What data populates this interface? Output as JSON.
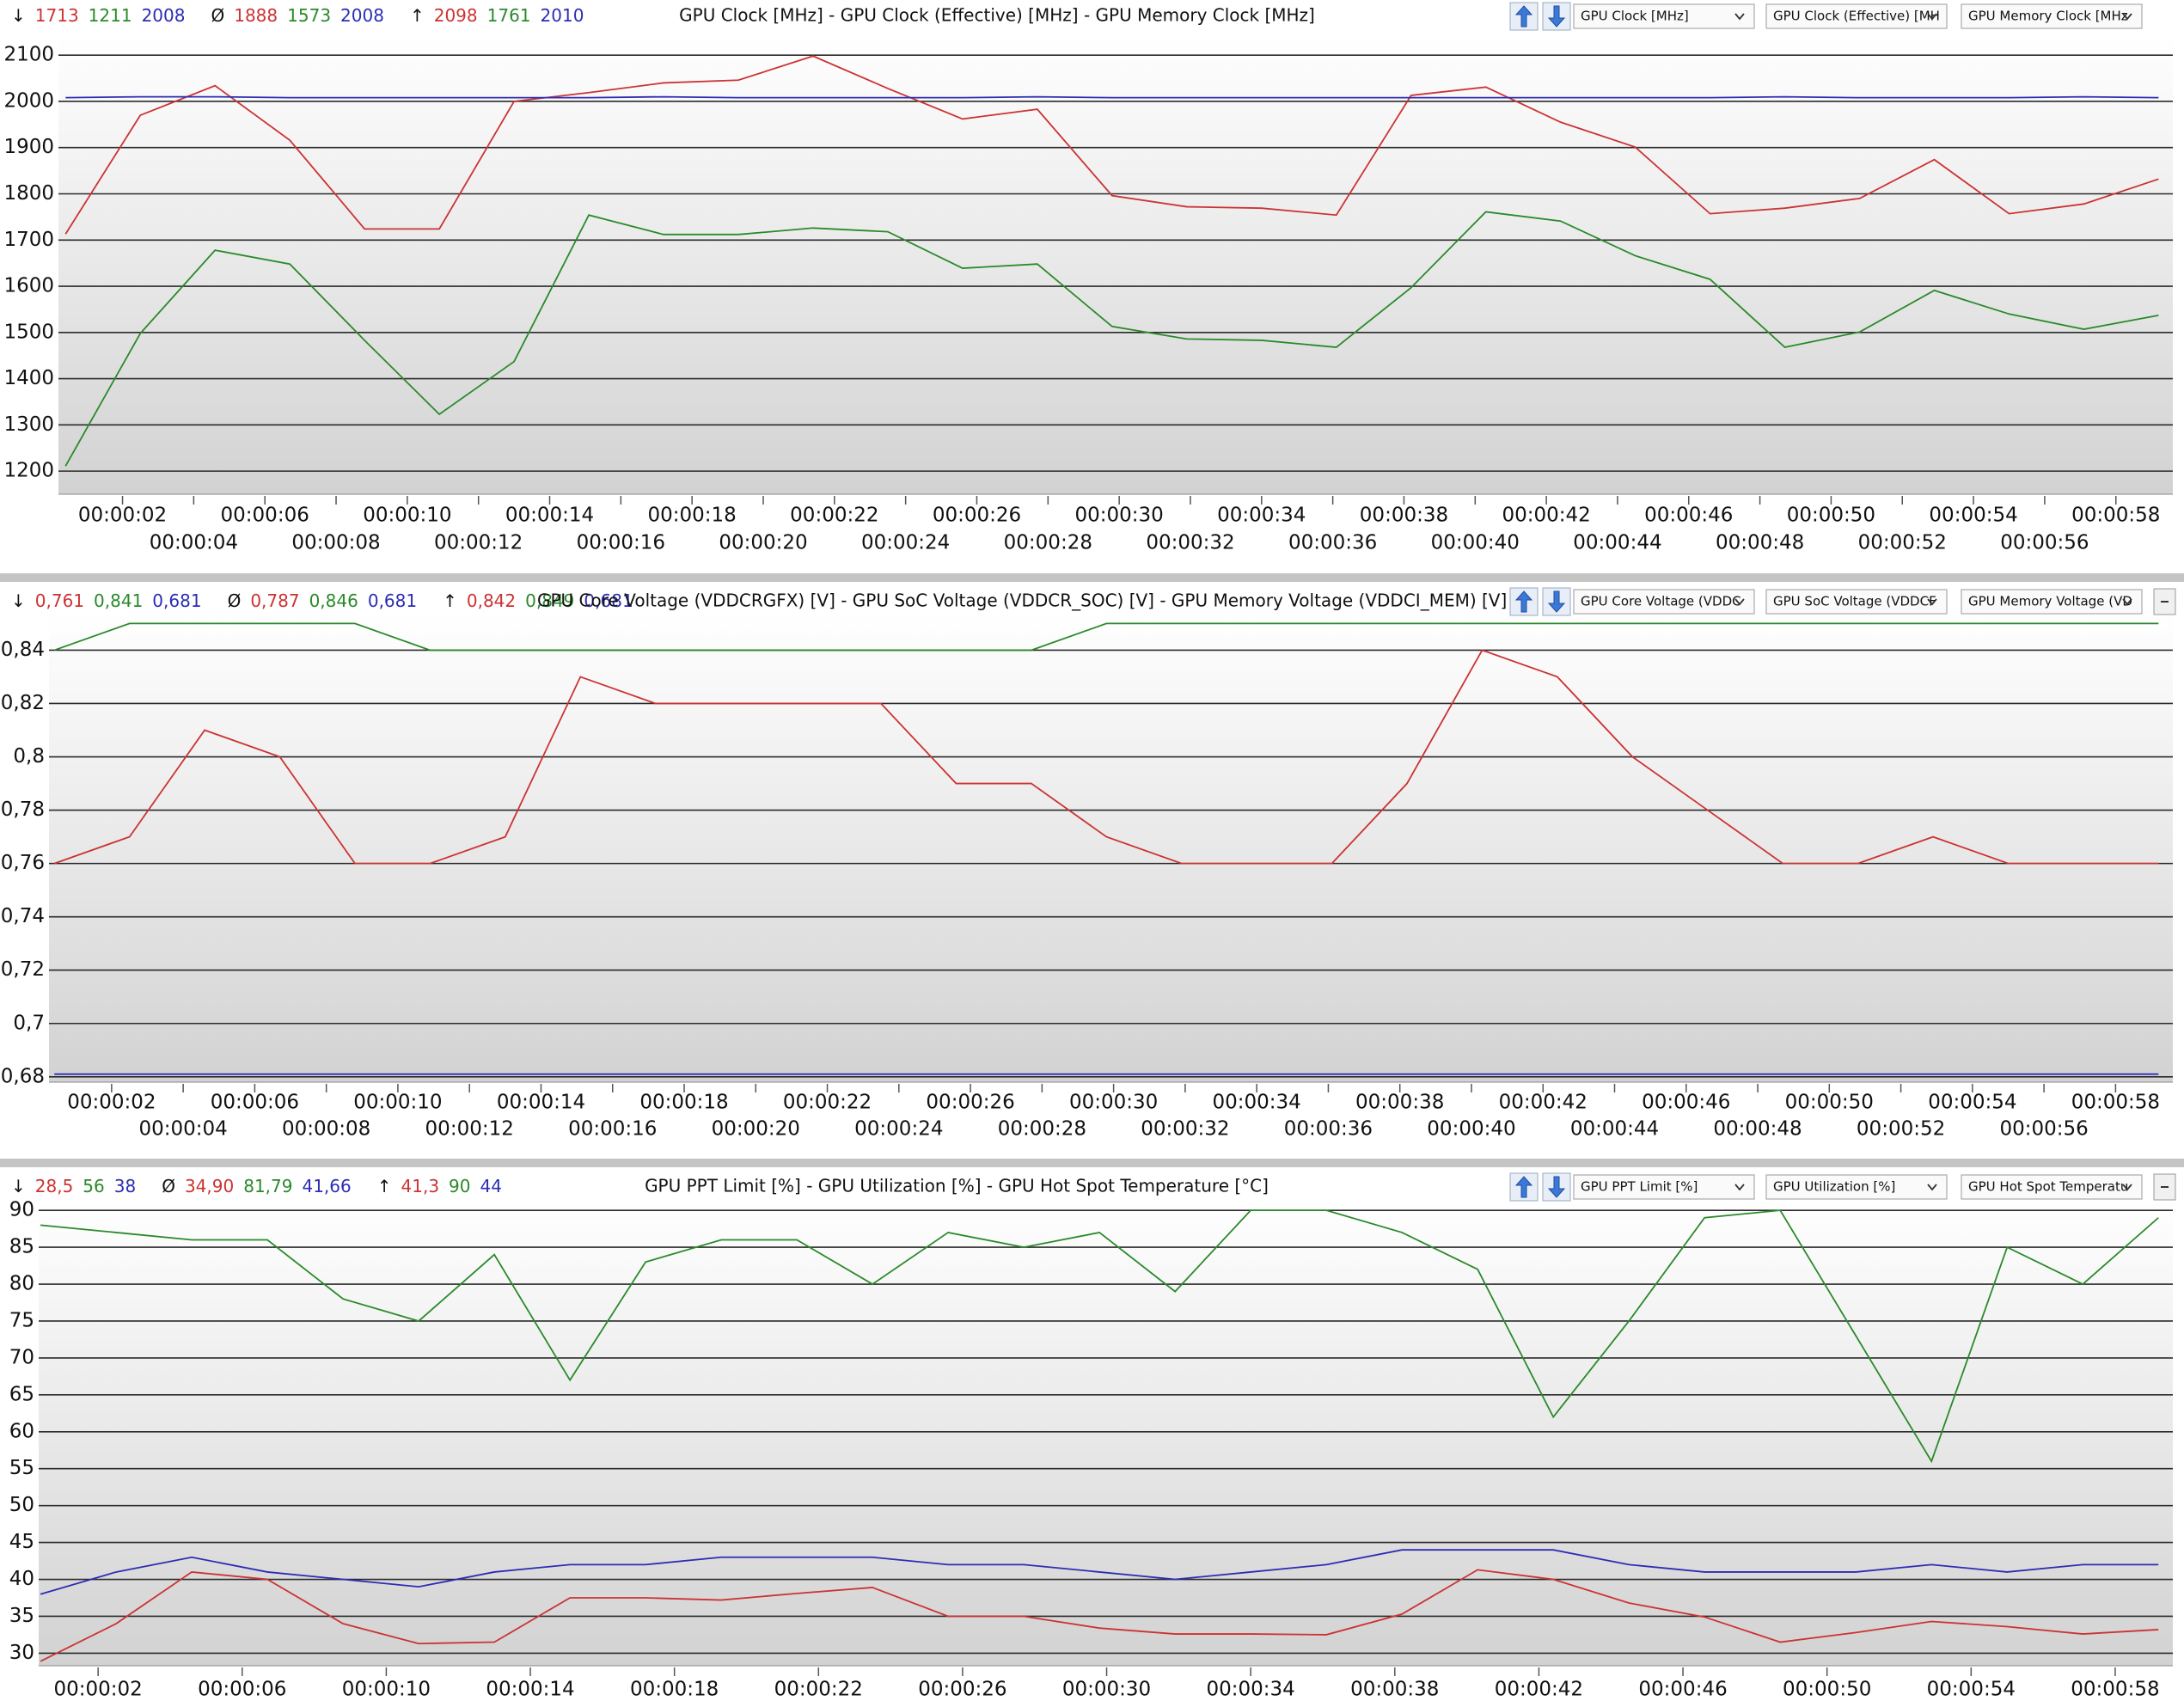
{
  "chart_data": [
    {
      "type": "line",
      "title": "GPU Clock [MHz]  -  GPU Clock (Effective) [MHz]  -  GPU Memory Clock [MHz]",
      "stats": [
        {
          "symbol": "↓",
          "values": [
            "1713",
            "1211",
            "2008"
          ]
        },
        {
          "symbol": "Ø",
          "values": [
            "1888",
            "1573",
            "2008"
          ]
        },
        {
          "symbol": "↑",
          "values": [
            "2098",
            "1761",
            "2010"
          ]
        }
      ],
      "x": [
        0.4,
        2.5,
        4.6,
        6.7,
        8.8,
        10.9,
        13,
        15.1,
        17.2,
        19.3,
        21.4,
        23.5,
        25.6,
        27.7,
        29.8,
        31.9,
        34,
        36.1,
        38.2,
        40.3,
        42.4,
        44.5,
        46.6,
        48.7,
        50.8,
        52.9,
        55,
        57.1,
        59.2
      ],
      "xlim": [
        0.2,
        59.6
      ],
      "xticks": [
        {
          "value": 2,
          "label": "00:00:02"
        },
        {
          "value": 4,
          "label": "00:00:04"
        },
        {
          "value": 6,
          "label": "00:00:06"
        },
        {
          "value": 8,
          "label": "00:00:08"
        },
        {
          "value": 10,
          "label": "00:00:10"
        },
        {
          "value": 12,
          "label": "00:00:12"
        },
        {
          "value": 14,
          "label": "00:00:14"
        },
        {
          "value": 16,
          "label": "00:00:16"
        },
        {
          "value": 18,
          "label": "00:00:18"
        },
        {
          "value": 20,
          "label": "00:00:20"
        },
        {
          "value": 22,
          "label": "00:00:22"
        },
        {
          "value": 24,
          "label": "00:00:24"
        },
        {
          "value": 26,
          "label": "00:00:26"
        },
        {
          "value": 28,
          "label": "00:00:28"
        },
        {
          "value": 30,
          "label": "00:00:30"
        },
        {
          "value": 32,
          "label": "00:00:32"
        },
        {
          "value": 34,
          "label": "00:00:34"
        },
        {
          "value": 36,
          "label": "00:00:36"
        },
        {
          "value": 38,
          "label": "00:00:38"
        },
        {
          "value": 40,
          "label": "00:00:40"
        },
        {
          "value": 42,
          "label": "00:00:42"
        },
        {
          "value": 44,
          "label": "00:00:44"
        },
        {
          "value": 46,
          "label": "00:00:46"
        },
        {
          "value": 48,
          "label": "00:00:48"
        },
        {
          "value": 50,
          "label": "00:00:50"
        },
        {
          "value": 52,
          "label": "00:00:52"
        },
        {
          "value": 54,
          "label": "00:00:54"
        },
        {
          "value": 56,
          "label": "00:00:56"
        },
        {
          "value": 58,
          "label": "00:00:58"
        }
      ],
      "ylim": [
        1150,
        2145
      ],
      "yticks": [
        1200,
        1300,
        1400,
        1500,
        1600,
        1700,
        1800,
        1900,
        2000,
        2100
      ],
      "grid": true,
      "series": [
        {
          "name": "GPU Clock [MHz]",
          "color": "#cc3333",
          "values": [
            1713,
            1970,
            2034,
            1916,
            1724,
            1724,
            2000,
            2019,
            2040,
            2046,
            2098,
            2028,
            1962,
            1983,
            1796,
            1772,
            1769,
            1754,
            2013,
            2031,
            1955,
            1901,
            1757,
            1769,
            1790,
            1874,
            1757,
            1778,
            1832
          ]
        },
        {
          "name": "GPU Clock (Effective) [MH",
          "color": "#2a8a2a",
          "values": [
            1211,
            1498,
            1678,
            1648,
            1483,
            1323,
            1437,
            1754,
            1712,
            1712,
            1726,
            1718,
            1639,
            1648,
            1513,
            1486,
            1483,
            1468,
            1597,
            1761,
            1741,
            1666,
            1615,
            1468,
            1501,
            1591,
            1540,
            1507,
            1537
          ]
        },
        {
          "name": "GPU Memory Clock [MHz",
          "color": "#2d2db4",
          "values": [
            2008,
            2010,
            2010,
            2008,
            2008,
            2008,
            2008,
            2008,
            2010,
            2008,
            2008,
            2008,
            2008,
            2010,
            2008,
            2008,
            2008,
            2008,
            2008,
            2008,
            2008,
            2008,
            2008,
            2010,
            2008,
            2008,
            2008,
            2010,
            2008
          ]
        }
      ]
    },
    {
      "type": "line",
      "title": "GPU Core Voltage (VDDCRGFX) [V]  -  GPU SoC Voltage (VDDCR_SOC) [V]  -  GPU Memory Voltage (VDDCI_MEM) [V]",
      "stats": [
        {
          "symbol": "↓",
          "values": [
            "0,761",
            "0,841",
            "0,681"
          ]
        },
        {
          "symbol": "Ø",
          "values": [
            "0,787",
            "0,846",
            "0,681"
          ]
        },
        {
          "symbol": "↑",
          "values": [
            "0,842",
            "0,849",
            "0,681"
          ]
        }
      ],
      "x": [
        0.4,
        2.5,
        4.6,
        6.7,
        8.8,
        10.9,
        13,
        15.1,
        17.2,
        19.3,
        21.4,
        23.5,
        25.6,
        27.7,
        29.8,
        31.9,
        34,
        36.1,
        38.2,
        40.3,
        42.4,
        44.5,
        46.6,
        48.7,
        50.8,
        52.9,
        55,
        57.1,
        59.2
      ],
      "xlim": [
        0.25,
        59.6
      ],
      "xticks": [
        {
          "value": 2,
          "label": "00:00:02"
        },
        {
          "value": 4,
          "label": "00:00:04"
        },
        {
          "value": 6,
          "label": "00:00:06"
        },
        {
          "value": 8,
          "label": "00:00:08"
        },
        {
          "value": 10,
          "label": "00:00:10"
        },
        {
          "value": 12,
          "label": "00:00:12"
        },
        {
          "value": 14,
          "label": "00:00:14"
        },
        {
          "value": 16,
          "label": "00:00:16"
        },
        {
          "value": 18,
          "label": "00:00:18"
        },
        {
          "value": 20,
          "label": "00:00:20"
        },
        {
          "value": 22,
          "label": "00:00:22"
        },
        {
          "value": 24,
          "label": "00:00:24"
        },
        {
          "value": 26,
          "label": "00:00:26"
        },
        {
          "value": 28,
          "label": "00:00:28"
        },
        {
          "value": 30,
          "label": "00:00:30"
        },
        {
          "value": 32,
          "label": "00:00:32"
        },
        {
          "value": 34,
          "label": "00:00:34"
        },
        {
          "value": 36,
          "label": "00:00:36"
        },
        {
          "value": 38,
          "label": "00:00:38"
        },
        {
          "value": 40,
          "label": "00:00:40"
        },
        {
          "value": 42,
          "label": "00:00:42"
        },
        {
          "value": 44,
          "label": "00:00:44"
        },
        {
          "value": 46,
          "label": "00:00:46"
        },
        {
          "value": 48,
          "label": "00:00:48"
        },
        {
          "value": 50,
          "label": "00:00:50"
        },
        {
          "value": 52,
          "label": "00:00:52"
        },
        {
          "value": 54,
          "label": "00:00:54"
        },
        {
          "value": 56,
          "label": "00:00:56"
        },
        {
          "value": 58,
          "label": "00:00:58"
        }
      ],
      "ylim": [
        0.678,
        0.854
      ],
      "yticks": [
        {
          "value": 0.68,
          "label": "0,68"
        },
        {
          "value": 0.7,
          "label": "0,7"
        },
        {
          "value": 0.72,
          "label": "0,72"
        },
        {
          "value": 0.74,
          "label": "0,74"
        },
        {
          "value": 0.76,
          "label": "0,76"
        },
        {
          "value": 0.78,
          "label": "0,78"
        },
        {
          "value": 0.8,
          "label": "0,8"
        },
        {
          "value": 0.82,
          "label": "0,82"
        },
        {
          "value": 0.84,
          "label": "0,84"
        }
      ],
      "grid": true,
      "series": [
        {
          "name": "GPU Core Voltage (VDDC",
          "color": "#cc3333",
          "values": [
            0.76,
            0.77,
            0.81,
            0.8,
            0.76,
            0.76,
            0.77,
            0.83,
            0.82,
            0.82,
            0.82,
            0.82,
            0.79,
            0.79,
            0.77,
            0.76,
            0.76,
            0.76,
            0.79,
            0.84,
            0.83,
            0.8,
            0.78,
            0.76,
            0.76,
            0.77,
            0.76,
            0.76,
            0.76
          ]
        },
        {
          "name": "GPU SoC Voltage (VDDCF",
          "color": "#2a8a2a",
          "values": [
            0.84,
            0.85,
            0.85,
            0.85,
            0.85,
            0.84,
            0.84,
            0.84,
            0.84,
            0.84,
            0.84,
            0.84,
            0.84,
            0.84,
            0.85,
            0.85,
            0.85,
            0.85,
            0.85,
            0.85,
            0.85,
            0.85,
            0.85,
            0.85,
            0.85,
            0.85,
            0.85,
            0.85,
            0.85
          ]
        },
        {
          "name": "GPU Memory Voltage (VD",
          "color": "#2d2db4",
          "values": [
            0.681,
            0.681,
            0.681,
            0.681,
            0.681,
            0.681,
            0.681,
            0.681,
            0.681,
            0.681,
            0.681,
            0.681,
            0.681,
            0.681,
            0.681,
            0.681,
            0.681,
            0.681,
            0.681,
            0.681,
            0.681,
            0.681,
            0.681,
            0.681,
            0.681,
            0.681,
            0.681,
            0.681,
            0.681
          ]
        }
      ]
    },
    {
      "type": "line",
      "title": "GPU PPT Limit [%]  -  GPU Utilization [%]  -  GPU Hot Spot Temperature [°C]",
      "stats": [
        {
          "symbol": "↓",
          "values": [
            "28,5",
            "56",
            "38"
          ]
        },
        {
          "symbol": "Ø",
          "values": [
            "34,90",
            "81,79",
            "41,66"
          ]
        },
        {
          "symbol": "↑",
          "values": [
            "41,3",
            "90",
            "44"
          ]
        }
      ],
      "x": [
        0.4,
        2.5,
        4.6,
        6.7,
        8.8,
        10.9,
        13,
        15.1,
        17.2,
        19.3,
        21.4,
        23.5,
        25.6,
        27.7,
        29.8,
        31.9,
        34,
        36.1,
        38.2,
        40.3,
        42.4,
        44.5,
        46.6,
        48.7,
        50.8,
        52.9,
        55,
        57.1,
        59.2
      ],
      "xlim": [
        0.35,
        59.6
      ],
      "xticks": [
        {
          "value": 2,
          "label": "00:00:02"
        },
        {
          "value": 6,
          "label": "00:00:06"
        },
        {
          "value": 10,
          "label": "00:00:10"
        },
        {
          "value": 14,
          "label": "00:00:14"
        },
        {
          "value": 18,
          "label": "00:00:18"
        },
        {
          "value": 22,
          "label": "00:00:22"
        },
        {
          "value": 26,
          "label": "00:00:26"
        },
        {
          "value": 30,
          "label": "00:00:30"
        },
        {
          "value": 34,
          "label": "00:00:34"
        },
        {
          "value": 38,
          "label": "00:00:38"
        },
        {
          "value": 42,
          "label": "00:00:42"
        },
        {
          "value": 46,
          "label": "00:00:46"
        },
        {
          "value": 50,
          "label": "00:00:50"
        },
        {
          "value": 54,
          "label": "00:00:54"
        },
        {
          "value": 58,
          "label": "00:00:58"
        }
      ],
      "ylim": [
        28.3,
        91.3
      ],
      "yticks": [
        30,
        35,
        40,
        45,
        50,
        55,
        60,
        65,
        70,
        75,
        80,
        85,
        90
      ],
      "grid": true,
      "series": [
        {
          "name": "GPU PPT Limit [%]",
          "color": "#cc3333",
          "values": [
            28.9,
            34,
            41,
            40,
            34,
            31.3,
            31.5,
            37.5,
            37.5,
            37.2,
            38.1,
            38.9,
            35,
            35,
            33.4,
            32.6,
            32.6,
            32.5,
            35.3,
            41.3,
            40,
            36.8,
            34.9,
            31.5,
            32.8,
            34.3,
            33.6,
            32.6,
            33.2
          ]
        },
        {
          "name": "GPU Utilization [%]",
          "color": "#2a8a2a",
          "values": [
            88,
            87,
            86,
            86,
            78,
            75,
            84,
            67,
            83,
            86,
            86,
            80,
            87,
            85,
            87,
            79,
            90,
            90,
            87,
            82,
            62,
            75,
            89,
            90,
            73,
            56,
            85,
            80,
            89
          ]
        },
        {
          "name": "GPU Hot Spot Temperatu",
          "color": "#2d2db4",
          "values": [
            38,
            41,
            43,
            41,
            40,
            39,
            41,
            42,
            42,
            43,
            43,
            43,
            42,
            42,
            41,
            40,
            41,
            42,
            44,
            44,
            44,
            42,
            41,
            41,
            41,
            42,
            41,
            42,
            42
          ]
        }
      ]
    }
  ]
}
